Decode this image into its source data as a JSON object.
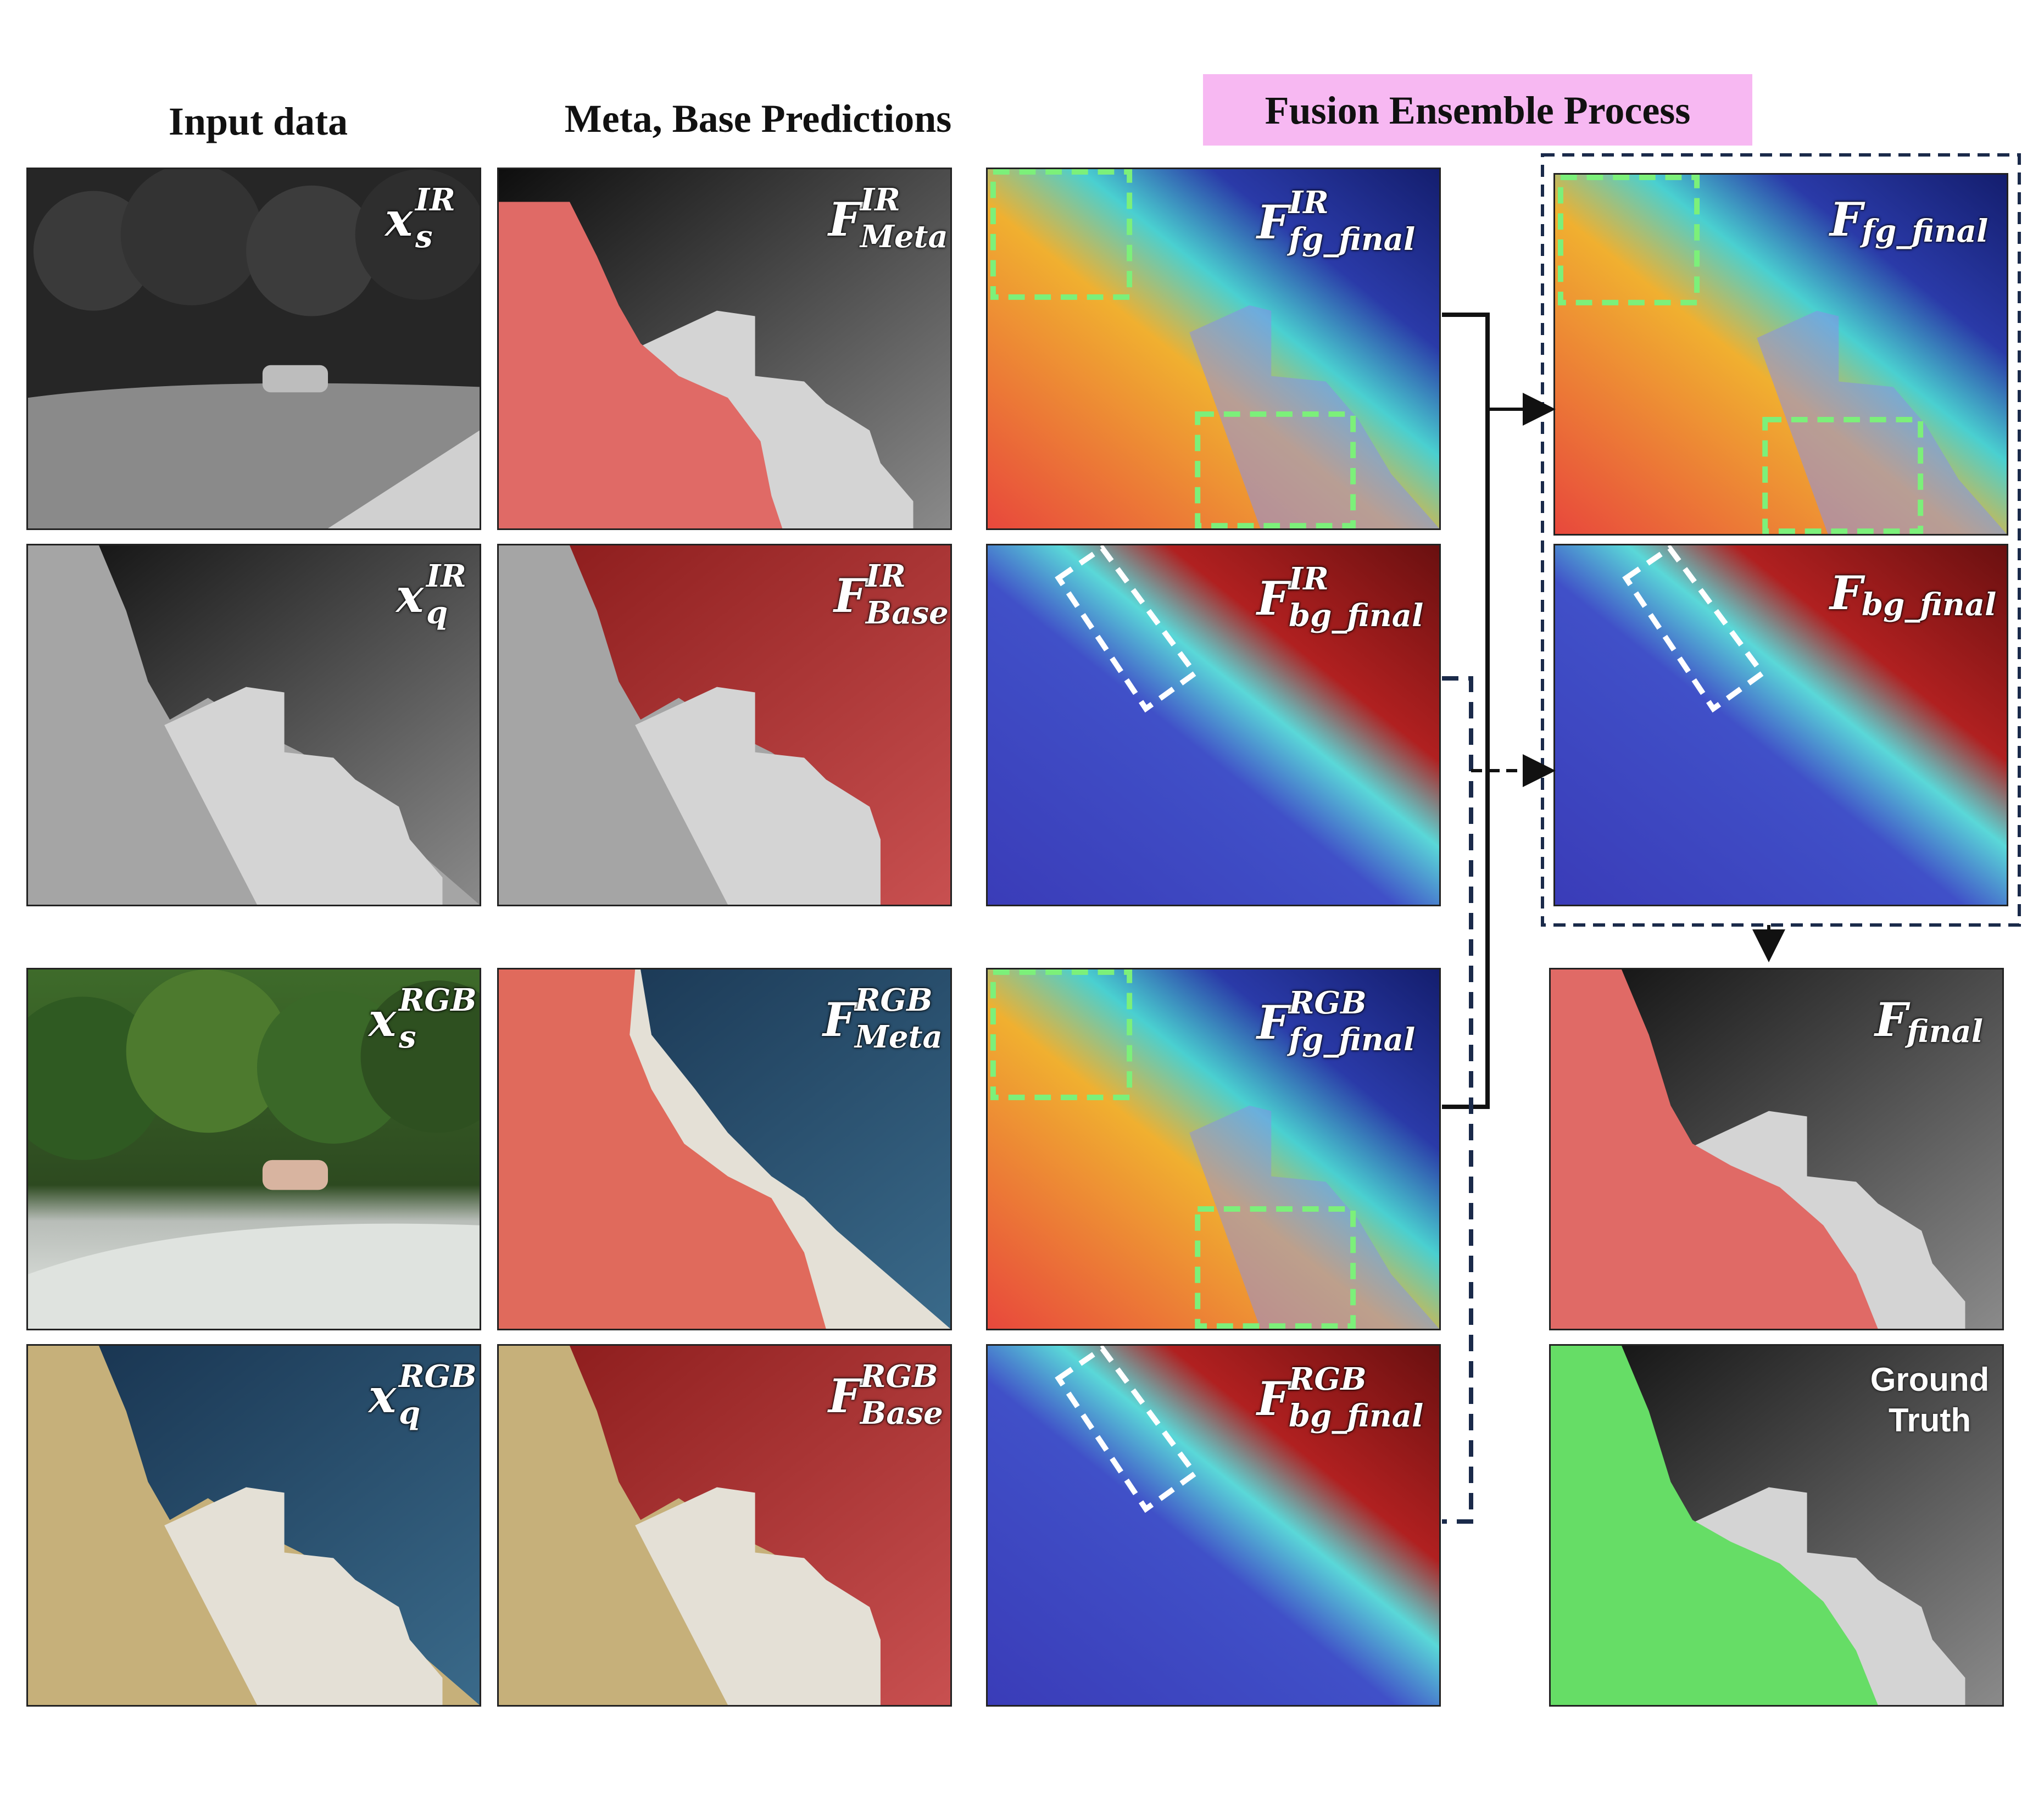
{
  "headers": {
    "input": "Input data",
    "meta_base": "Meta, Base Predictions",
    "fusion": "Fusion Ensemble Process"
  },
  "colors": {
    "fusion_header_bg": "#f7b8f2",
    "red_mask": "#e06a66",
    "green_mask": "#66dd66",
    "heat_fg": "#e6463a",
    "heat_bg": "#2a2fa0",
    "dashed_green": "#7cf07a",
    "dashed_white": "#ffffff",
    "connector": "#1a2a4a"
  },
  "labels": {
    "xs_ir": {
      "base": "x",
      "sup": "IR",
      "sub": "s"
    },
    "xq_ir": {
      "base": "x",
      "sup": "IR",
      "sub": "q"
    },
    "xs_rgb": {
      "base": "x",
      "sup": "RGB",
      "sub": "s"
    },
    "xq_rgb": {
      "base": "x",
      "sup": "RGB",
      "sub": "q"
    },
    "f_meta_ir": {
      "base": "F",
      "sup": "IR",
      "sub": "Meta"
    },
    "f_base_ir": {
      "base": "F",
      "sup": "IR",
      "sub": "Base"
    },
    "f_meta_rgb": {
      "base": "F",
      "sup": "RGB",
      "sub": "Meta"
    },
    "f_base_rgb": {
      "base": "F",
      "sup": "RGB",
      "sub": "Base"
    },
    "f_fg_ir": {
      "base": "F",
      "sup": "IR",
      "sub": "fg_final"
    },
    "f_bg_ir": {
      "base": "F",
      "sup": "IR",
      "sub": "bg_final"
    },
    "f_fg_rgb": {
      "base": "F",
      "sup": "RGB",
      "sub": "fg_final"
    },
    "f_bg_rgb": {
      "base": "F",
      "sup": "RGB",
      "sub": "bg_final"
    },
    "f_fg_final": {
      "base": "F",
      "sub": "fg_final"
    },
    "f_bg_final": {
      "base": "F",
      "sub": "bg_final"
    },
    "f_final": {
      "base": "F",
      "sub": "final"
    },
    "ground_truth": [
      "Ground",
      "Truth"
    ]
  }
}
